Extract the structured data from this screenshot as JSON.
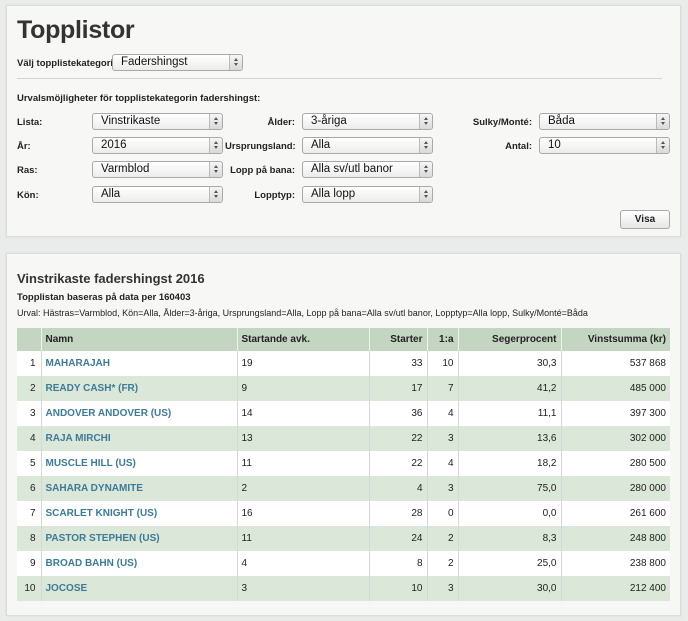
{
  "top": {
    "title": "Topplistor",
    "category_label": "Välj topplistekategori:",
    "category_value": "Fadershingst",
    "options_heading": "Urvalsmöjligheter för topplistekategorin fadershingst:",
    "filters": {
      "lista": {
        "label": "Lista:",
        "value": "Vinstrikaste"
      },
      "ar": {
        "label": "År:",
        "value": "2016"
      },
      "ras": {
        "label": "Ras:",
        "value": "Varmblod"
      },
      "kon": {
        "label": "Kön:",
        "value": "Alla"
      },
      "alder": {
        "label": "Ålder:",
        "value": "3-åriga"
      },
      "ursprungsland": {
        "label": "Ursprungsland:",
        "value": "Alla"
      },
      "lopp_pa_bana": {
        "label": "Lopp på bana:",
        "value": "Alla sv/utl banor"
      },
      "lopptyp": {
        "label": "Lopptyp:",
        "value": "Alla lopp"
      },
      "sulky": {
        "label": "Sulky/Monté:",
        "value": "Båda"
      },
      "antal": {
        "label": "Antal:",
        "value": "10"
      }
    },
    "show_button": "Visa"
  },
  "results": {
    "title": "Vinstrikaste fadershingst 2016",
    "subtitle": "Topplistan baseras på data per 160403",
    "urval": "Urval: Hästras=Varmblod, Kön=Alla, Ålder=3-åriga, Ursprungsland=Alla, Lopp på bana=Alla sv/utl banor, Lopptyp=Alla lopp, Sulky/Monté=Båda",
    "columns": [
      "",
      "Namn",
      "Startande avk.",
      "Starter",
      "1:a",
      "Segerprocent",
      "Vinstsumma (kr)"
    ],
    "rows": [
      [
        "1",
        "MAHARAJAH",
        "19",
        "33",
        "10",
        "30,3",
        "537 868"
      ],
      [
        "2",
        "READY CASH* (FR)",
        "9",
        "17",
        "7",
        "41,2",
        "485 000"
      ],
      [
        "3",
        "ANDOVER ANDOVER (US)",
        "14",
        "36",
        "4",
        "11,1",
        "397 300"
      ],
      [
        "4",
        "RAJA MIRCHI",
        "13",
        "22",
        "3",
        "13,6",
        "302 000"
      ],
      [
        "5",
        "MUSCLE HILL (US)",
        "11",
        "22",
        "4",
        "18,2",
        "280 500"
      ],
      [
        "6",
        "SAHARA DYNAMITE",
        "2",
        "4",
        "3",
        "75,0",
        "280 000"
      ],
      [
        "7",
        "SCARLET KNIGHT (US)",
        "16",
        "28",
        "0",
        "0,0",
        "261 600"
      ],
      [
        "8",
        "PASTOR STEPHEN (US)",
        "11",
        "24",
        "2",
        "8,3",
        "248 800"
      ],
      [
        "9",
        "BROAD BAHN (US)",
        "4",
        "8",
        "2",
        "25,0",
        "238 800"
      ],
      [
        "10",
        "JOCOSE",
        "3",
        "10",
        "3",
        "30,0",
        "212 400"
      ]
    ]
  },
  "colors": {
    "header_bg": "#c4d6c1",
    "alt_row_bg": "#dbe7d8",
    "link": "#3c7a96"
  }
}
